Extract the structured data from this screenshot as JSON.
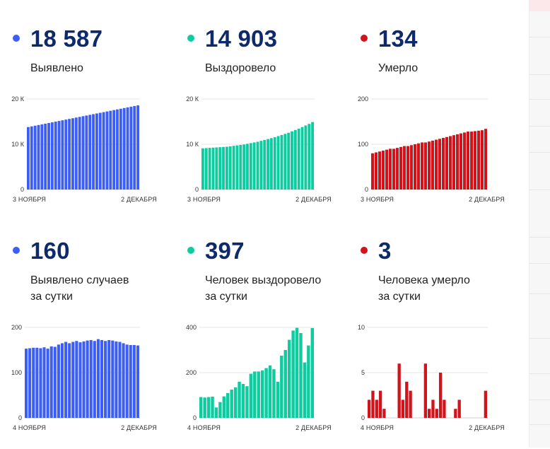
{
  "colors": {
    "blue": "#3d5ef5",
    "green": "#0fcca0",
    "red": "#d0141c",
    "number": "#0f2a6b"
  },
  "panels": [
    {
      "number": "18 587",
      "label_lines": [
        "Выявлено"
      ],
      "color": "blue"
    },
    {
      "number": "14 903",
      "label_lines": [
        "Выздоровело"
      ],
      "color": "green"
    },
    {
      "number": "134",
      "label_lines": [
        "Умерло"
      ],
      "color": "red"
    },
    {
      "number": "160",
      "label_lines": [
        "Выявлено случаев",
        "за сутки"
      ],
      "color": "blue"
    },
    {
      "number": "397",
      "label_lines": [
        "Человек выздоровело",
        "за сутки"
      ],
      "color": "green"
    },
    {
      "number": "3",
      "label_lines": [
        "Человека умерло",
        "за сутки"
      ],
      "color": "red"
    }
  ],
  "chart_data": [
    {
      "type": "bar",
      "name": "cumulative-cases",
      "color": "blue",
      "ylim": [
        0,
        20000
      ],
      "yticks": [
        0,
        10000,
        20000
      ],
      "ytick_labels": [
        "0",
        "10 К",
        "20 К"
      ],
      "x_start_label": "3 НОЯБРЯ",
      "x_end_label": "2 ДЕКАБРЯ",
      "values": [
        13800,
        13950,
        14100,
        14250,
        14400,
        14550,
        14700,
        14850,
        15000,
        15150,
        15300,
        15450,
        15600,
        15750,
        15900,
        16050,
        16200,
        16350,
        16500,
        16650,
        16800,
        16950,
        17100,
        17250,
        17400,
        17550,
        17700,
        17850,
        18000,
        18150,
        18300,
        18450,
        18587
      ]
    },
    {
      "type": "bar",
      "name": "cumulative-recovered",
      "color": "green",
      "ylim": [
        0,
        20000
      ],
      "yticks": [
        0,
        10000,
        20000
      ],
      "ytick_labels": [
        "0",
        "10 К",
        "20 К"
      ],
      "x_start_label": "3 НОЯБРЯ",
      "x_end_label": "2 ДЕКАБРЯ",
      "values": [
        9100,
        9150,
        9200,
        9250,
        9300,
        9350,
        9400,
        9450,
        9550,
        9650,
        9750,
        9850,
        9950,
        10100,
        10250,
        10400,
        10550,
        10750,
        10950,
        11150,
        11350,
        11550,
        11800,
        12050,
        12300,
        12550,
        12850,
        13150,
        13450,
        13800,
        14150,
        14500,
        14903
      ]
    },
    {
      "type": "bar",
      "name": "cumulative-deaths",
      "color": "red",
      "ylim": [
        0,
        200
      ],
      "yticks": [
        0,
        100,
        200
      ],
      "ytick_labels": [
        "0",
        "100",
        "200"
      ],
      "x_start_label": "3 НОЯБРЯ",
      "x_end_label": "2 ДЕКАБРЯ",
      "values": [
        80,
        82,
        84,
        86,
        88,
        90,
        90,
        92,
        94,
        96,
        96,
        98,
        100,
        102,
        104,
        104,
        106,
        108,
        110,
        112,
        114,
        116,
        118,
        120,
        122,
        124,
        126,
        128,
        128,
        129,
        130,
        131,
        134
      ]
    },
    {
      "type": "bar",
      "name": "daily-cases",
      "color": "blue",
      "ylim": [
        0,
        200
      ],
      "yticks": [
        0,
        100,
        200
      ],
      "ytick_labels": [
        "0",
        "100",
        "200"
      ],
      "x_start_label": "4 НОЯБРЯ",
      "x_end_label": "2 ДЕКАБРЯ",
      "values": [
        153,
        154,
        155,
        155,
        154,
        156,
        153,
        158,
        157,
        162,
        165,
        168,
        165,
        168,
        170,
        167,
        169,
        171,
        172,
        170,
        174,
        172,
        170,
        172,
        171,
        169,
        168,
        165,
        162,
        161,
        161,
        160
      ]
    },
    {
      "type": "bar",
      "name": "daily-recovered",
      "color": "green",
      "ylim": [
        0,
        400
      ],
      "yticks": [
        0,
        200,
        400
      ],
      "ytick_labels": [
        "0",
        "200",
        "400"
      ],
      "x_start_label": "4 НОЯБРЯ",
      "x_end_label": "2 ДЕКАБРЯ",
      "values": [
        92,
        90,
        92,
        94,
        46,
        70,
        95,
        110,
        125,
        135,
        160,
        150,
        140,
        195,
        205,
        205,
        210,
        220,
        232,
        215,
        160,
        275,
        300,
        345,
        386,
        398,
        375,
        245,
        320,
        397
      ]
    },
    {
      "type": "bar",
      "name": "daily-deaths",
      "color": "red",
      "ylim": [
        0,
        10
      ],
      "yticks": [
        0,
        5,
        10
      ],
      "ytick_labels": [
        "0",
        "5",
        "10"
      ],
      "x_start_label": "4 НОЯБРЯ",
      "x_end_label": "2 ДЕКАБРЯ",
      "values": [
        2,
        3,
        2,
        3,
        1,
        0,
        0,
        0,
        6,
        2,
        4,
        3,
        0,
        0,
        0,
        6,
        1,
        2,
        1,
        5,
        2,
        0,
        0,
        1,
        2,
        0,
        0,
        0,
        0,
        0,
        0,
        3
      ]
    }
  ]
}
